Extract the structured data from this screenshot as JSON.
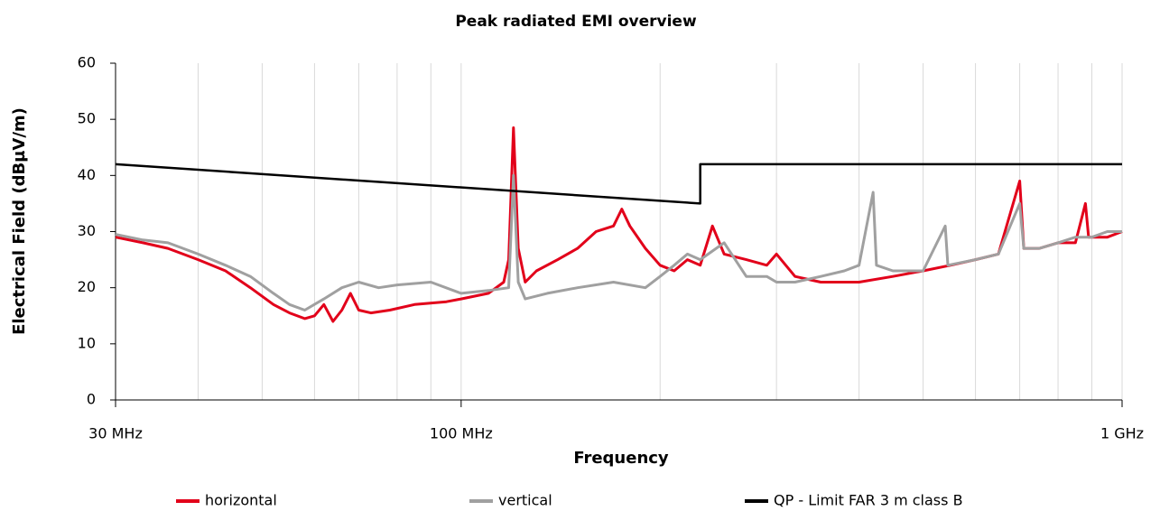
{
  "chart_data": {
    "type": "line",
    "title": "Peak radiated EMI overview",
    "x_label": "Frequency",
    "y_label": "Electrical Field (dBµV/m)",
    "xscale": "log",
    "xlim": [
      30,
      1000
    ],
    "ylim": [
      0,
      60
    ],
    "xticks": [
      {
        "value": 30,
        "label": "30 MHz"
      },
      {
        "value": 100,
        "label": "100 MHz"
      },
      {
        "value": 1000,
        "label": "1 GHz"
      }
    ],
    "xgrid_minor": [
      40,
      50,
      60,
      70,
      80,
      90,
      200,
      300,
      400,
      500,
      600,
      700,
      800,
      900
    ],
    "yticks": [
      0,
      10,
      20,
      30,
      40,
      50,
      60
    ],
    "grid": "x",
    "legend": "bottom",
    "series": [
      {
        "name": "horizontal",
        "color": "#e2001a",
        "x": [
          30,
          33,
          36,
          40,
          44,
          48,
          52,
          55,
          58,
          60,
          62,
          64,
          66,
          68,
          70,
          73,
          78,
          85,
          95,
          100,
          110,
          116,
          118,
          120,
          122,
          125,
          130,
          140,
          150,
          160,
          170,
          175,
          180,
          190,
          200,
          210,
          220,
          230,
          240,
          250,
          270,
          290,
          300,
          320,
          350,
          400,
          450,
          500,
          550,
          600,
          650,
          700,
          710,
          750,
          800,
          850,
          880,
          890,
          950,
          1000
        ],
        "values": [
          29,
          28,
          27,
          25,
          23,
          20,
          17,
          15.5,
          14.5,
          15,
          17,
          14,
          16,
          19,
          16,
          15.5,
          16,
          17,
          17.5,
          18,
          19,
          21,
          25,
          48.5,
          27,
          21,
          23,
          25,
          27,
          30,
          31,
          34,
          31,
          27,
          24,
          23,
          25,
          24,
          31,
          26,
          25,
          24,
          26,
          22,
          21,
          21,
          22,
          23,
          24,
          25,
          26,
          39,
          27,
          27,
          28,
          28,
          35,
          29,
          29,
          30
        ]
      },
      {
        "name": "vertical",
        "color": "#a0a0a0",
        "x": [
          30,
          33,
          36,
          40,
          44,
          48,
          52,
          55,
          58,
          62,
          66,
          70,
          75,
          80,
          90,
          100,
          110,
          118,
          120,
          122,
          125,
          135,
          150,
          170,
          190,
          200,
          210,
          220,
          230,
          250,
          270,
          290,
          300,
          320,
          350,
          380,
          400,
          420,
          425,
          450,
          500,
          540,
          545,
          600,
          650,
          700,
          710,
          750,
          800,
          850,
          900,
          950,
          1000
        ],
        "values": [
          29.5,
          28.5,
          28,
          26,
          24,
          22,
          19,
          17,
          16,
          18,
          20,
          21,
          20,
          20.5,
          21,
          19,
          19.5,
          20,
          40,
          21,
          18,
          19,
          20,
          21,
          20,
          22,
          24,
          26,
          25,
          28,
          22,
          22,
          21,
          21,
          22,
          23,
          24,
          37,
          24,
          23,
          23,
          31,
          24,
          25,
          26,
          35,
          27,
          27,
          28,
          29,
          29,
          30,
          30
        ]
      },
      {
        "name": "QP - Limit FAR 3 m class B",
        "color": "#000000",
        "x": [
          30,
          230,
          230,
          1000
        ],
        "values": [
          42,
          35,
          42,
          42
        ]
      }
    ]
  }
}
